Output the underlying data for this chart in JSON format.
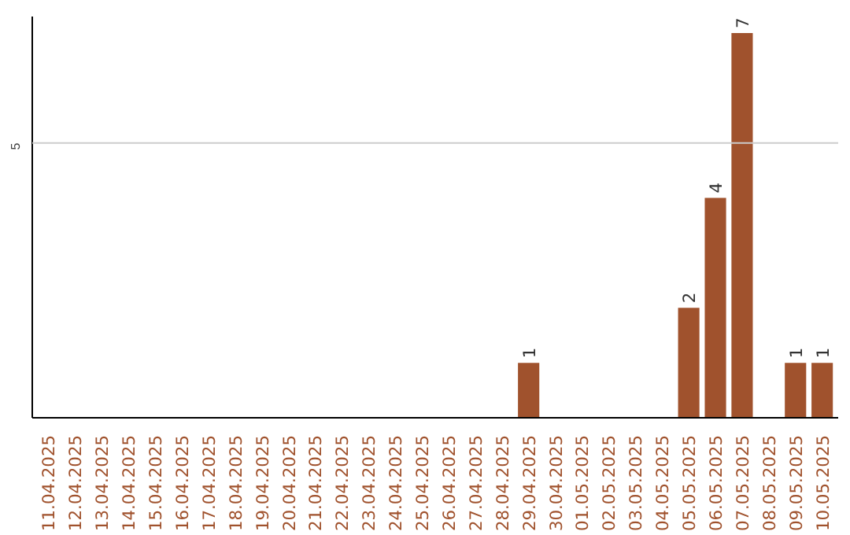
{
  "chart_data": {
    "type": "bar",
    "categories": [
      "11.04.2025",
      "12.04.2025",
      "13.04.2025",
      "14.04.2025",
      "15.04.2025",
      "16.04.2025",
      "17.04.2025",
      "18.04.2025",
      "19.04.2025",
      "20.04.2025",
      "21.04.2025",
      "22.04.2025",
      "23.04.2025",
      "24.04.2025",
      "25.04.2025",
      "26.04.2025",
      "27.04.2025",
      "28.04.2025",
      "29.04.2025",
      "30.04.2025",
      "01.05.2025",
      "02.05.2025",
      "03.05.2025",
      "04.05.2025",
      "05.05.2025",
      "06.05.2025",
      "07.05.2025",
      "08.05.2025",
      "09.05.2025",
      "10.05.2025"
    ],
    "values": [
      null,
      null,
      null,
      null,
      null,
      null,
      null,
      null,
      null,
      null,
      null,
      null,
      null,
      null,
      null,
      null,
      null,
      null,
      1,
      null,
      null,
      null,
      null,
      null,
      2,
      4,
      7,
      null,
      1,
      1
    ],
    "data_labels": true,
    "color": "#a0522d",
    "ylim": [
      0,
      7.3
    ],
    "ref_lines": [
      {
        "axis": "y",
        "value": 5,
        "label": "5",
        "color": "#cccccc"
      }
    ]
  }
}
